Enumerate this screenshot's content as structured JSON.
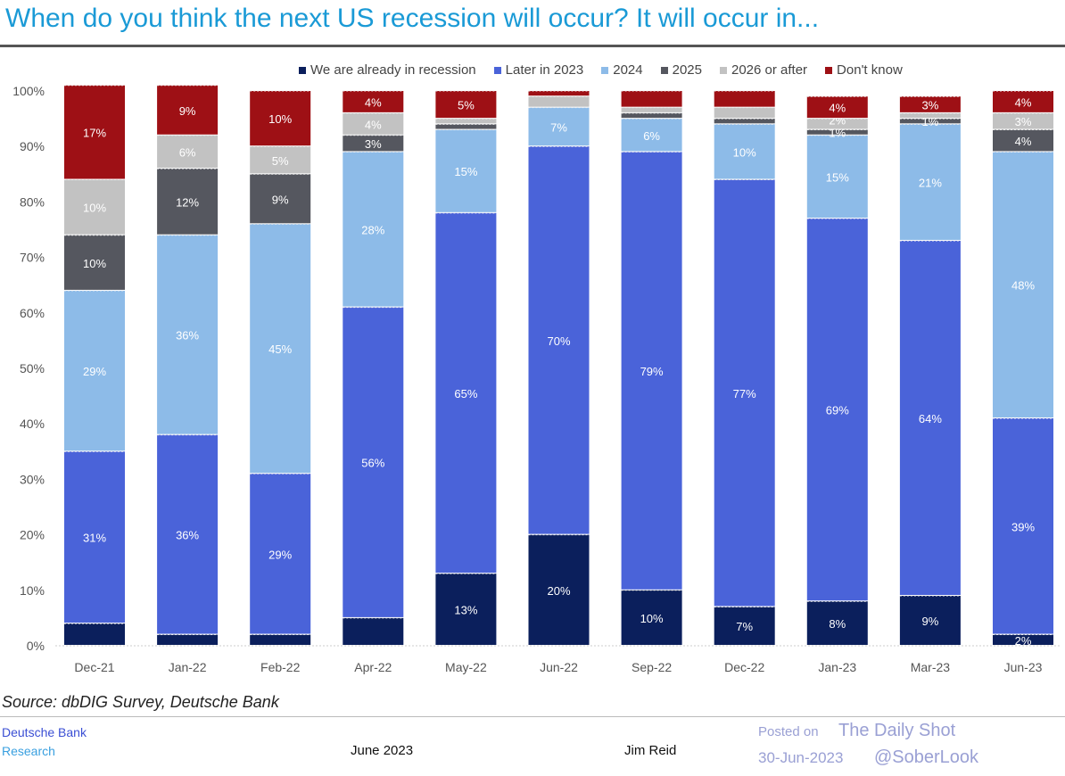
{
  "header": {
    "title": "When do you think the next US recession will occur? It will occur in..."
  },
  "watermark": {
    "line1": "Posted on",
    "line2": "The Daily Shot",
    "line3": "30-Jun-2023",
    "line4": "@SoberLook"
  },
  "footer": {
    "source": "Source: dbDIG Survey, Deutsche Bank",
    "brand1": "Deutsche Bank",
    "brand2": "Research",
    "date": "June 2023",
    "author": "Jim Reid"
  },
  "chart_data": {
    "type": "bar",
    "stacked": true,
    "title": "When do you think the next US recession will occur? It will occur in...",
    "xlabel": "",
    "ylabel": "",
    "ylim": [
      0,
      100
    ],
    "yticks": [
      "0%",
      "10%",
      "20%",
      "30%",
      "40%",
      "50%",
      "60%",
      "70%",
      "80%",
      "90%",
      "100%"
    ],
    "legend_position": "top",
    "categories": [
      "Dec-21",
      "Jan-22",
      "Feb-22",
      "Apr-22",
      "May-22",
      "Jun-22",
      "Sep-22",
      "Dec-22",
      "Jan-23",
      "Mar-23",
      "Jun-23"
    ],
    "series": [
      {
        "name": "We are already in recession",
        "color": "#0b1f5c",
        "values": [
          4,
          2,
          2,
          5,
          13,
          20,
          10,
          7,
          8,
          9,
          2
        ],
        "labels": [
          null,
          null,
          null,
          null,
          "13%",
          "20%",
          "10%",
          "7%",
          "8%",
          "9%",
          "2%"
        ]
      },
      {
        "name": "Later in 2023",
        "color": "#4a63d9",
        "values": [
          31,
          36,
          29,
          56,
          65,
          70,
          79,
          77,
          69,
          64,
          39
        ],
        "labels": [
          "31%",
          "36%",
          "29%",
          "56%",
          "65%",
          "70%",
          "79%",
          "77%",
          "69%",
          "64%",
          "39%"
        ]
      },
      {
        "name": "2024",
        "color": "#8dbbe8",
        "values": [
          29,
          36,
          45,
          28,
          15,
          7,
          6,
          10,
          15,
          21,
          48
        ],
        "labels": [
          "29%",
          "36%",
          "45%",
          "28%",
          "15%",
          "7%",
          "6%",
          "10%",
          "15%",
          "21%",
          "48%"
        ]
      },
      {
        "name": "2025",
        "color": "#55575f",
        "values": [
          10,
          12,
          9,
          3,
          1,
          0,
          1,
          1,
          1,
          1,
          4
        ],
        "labels": [
          "10%",
          "12%",
          "9%",
          "3%",
          null,
          null,
          null,
          null,
          "1%",
          "1%",
          "4%"
        ]
      },
      {
        "name": "2026 or after",
        "color": "#c2c2c2",
        "values": [
          10,
          6,
          5,
          4,
          1,
          2,
          1,
          2,
          2,
          1,
          3
        ],
        "labels": [
          "10%",
          "6%",
          "5%",
          "4%",
          null,
          null,
          null,
          null,
          "2%",
          null,
          "3%"
        ]
      },
      {
        "name": "Don't know",
        "color": "#9e1015",
        "values": [
          17,
          9,
          10,
          4,
          5,
          1,
          3,
          3,
          4,
          3,
          4
        ],
        "labels": [
          "17%",
          "9%",
          "10%",
          "4%",
          "5%",
          null,
          null,
          null,
          "4%",
          "3%",
          "4%"
        ]
      }
    ]
  }
}
